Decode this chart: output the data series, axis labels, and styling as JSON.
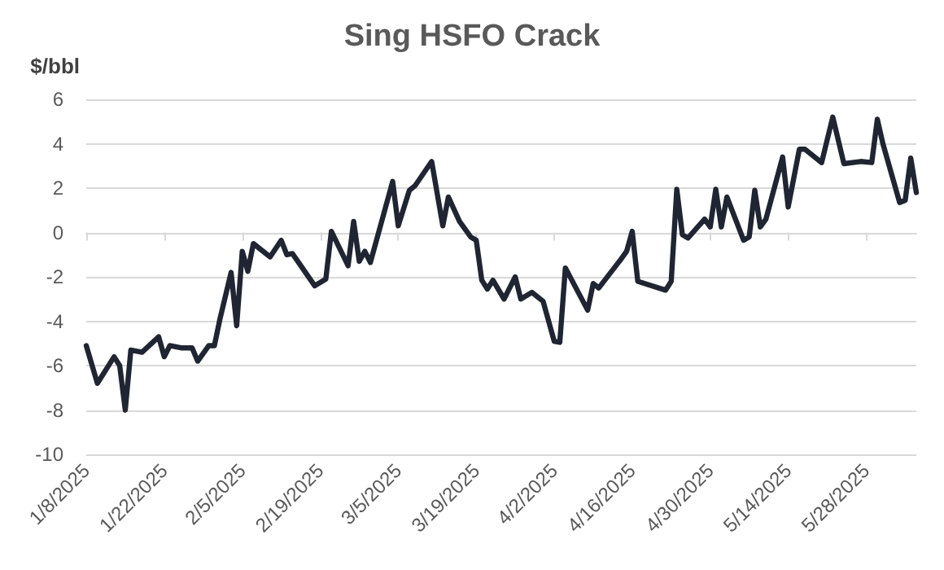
{
  "chart_data": {
    "type": "line",
    "title": "Sing HSFO Crack",
    "ylabel": "$/bbl",
    "x": [
      "2025-01-08",
      "2025-01-10",
      "2025-01-13",
      "2025-01-14",
      "2025-01-15",
      "2025-01-16",
      "2025-01-18",
      "2025-01-21",
      "2025-01-22",
      "2025-01-23",
      "2025-01-25",
      "2025-01-27",
      "2025-01-28",
      "2025-01-30",
      "2025-01-31",
      "2025-02-01",
      "2025-02-03",
      "2025-02-04",
      "2025-02-05",
      "2025-02-06",
      "2025-02-07",
      "2025-02-10",
      "2025-02-12",
      "2025-02-13",
      "2025-02-14",
      "2025-02-18",
      "2025-02-20",
      "2025-02-21",
      "2025-02-24",
      "2025-02-25",
      "2025-02-26",
      "2025-02-27",
      "2025-02-28",
      "2025-03-04",
      "2025-03-05",
      "2025-03-07",
      "2025-03-08",
      "2025-03-11",
      "2025-03-13",
      "2025-03-14",
      "2025-03-16",
      "2025-03-18",
      "2025-03-19",
      "2025-03-20",
      "2025-03-21",
      "2025-03-22",
      "2025-03-24",
      "2025-03-26",
      "2025-03-27",
      "2025-03-29",
      "2025-03-31",
      "2025-04-02",
      "2025-04-03",
      "2025-04-04",
      "2025-04-08",
      "2025-04-09",
      "2025-04-10",
      "2025-04-14",
      "2025-04-15",
      "2025-04-16",
      "2025-04-17",
      "2025-04-22",
      "2025-04-23",
      "2025-04-24",
      "2025-04-25",
      "2025-04-26",
      "2025-04-29",
      "2025-04-30",
      "2025-05-01",
      "2025-05-02",
      "2025-05-03",
      "2025-05-06",
      "2025-05-07",
      "2025-05-08",
      "2025-05-09",
      "2025-05-10",
      "2025-05-13",
      "2025-05-14",
      "2025-05-16",
      "2025-05-17",
      "2025-05-20",
      "2025-05-22",
      "2025-05-24",
      "2025-05-27",
      "2025-05-29",
      "2025-05-30",
      "2025-05-31",
      "2025-06-03",
      "2025-06-04",
      "2025-06-05",
      "2025-06-06"
    ],
    "series": [
      {
        "color": "#1f2532",
        "values": [
          -5.1,
          -6.8,
          -5.6,
          -6.0,
          -8.0,
          -5.3,
          -5.4,
          -4.7,
          -5.6,
          -5.1,
          -5.2,
          -5.2,
          -5.8,
          -5.1,
          -5.1,
          -3.9,
          -1.8,
          -4.2,
          -0.85,
          -1.75,
          -0.5,
          -1.1,
          -0.35,
          -1.0,
          -0.95,
          -2.4,
          -2.1,
          0.05,
          -1.5,
          0.5,
          -1.3,
          -0.85,
          -1.35,
          2.3,
          0.3,
          1.9,
          2.1,
          3.2,
          0.3,
          1.6,
          0.5,
          -0.2,
          -0.35,
          -2.15,
          -2.55,
          -2.15,
          -3.0,
          -2.0,
          -3.0,
          -2.7,
          -3.1,
          -4.9,
          -4.95,
          -1.6,
          -3.5,
          -2.3,
          -2.5,
          -1.2,
          -0.85,
          0.05,
          -2.2,
          -2.6,
          -2.2,
          1.95,
          -0.1,
          -0.25,
          0.6,
          0.25,
          1.95,
          0.25,
          1.6,
          -0.35,
          -0.2,
          1.9,
          0.25,
          0.6,
          3.4,
          1.15,
          3.75,
          3.75,
          3.15,
          5.2,
          3.1,
          3.2,
          3.15,
          5.1,
          4.0,
          1.35,
          1.45,
          3.35,
          1.8
        ]
      }
    ],
    "xlim": [
      "2025-01-08",
      "2025-06-06"
    ],
    "xticks": [
      {
        "value": "2025-01-08",
        "label": "1/8/2025"
      },
      {
        "value": "2025-01-22",
        "label": "1/22/2025"
      },
      {
        "value": "2025-02-05",
        "label": "2/5/2025"
      },
      {
        "value": "2025-02-19",
        "label": "2/19/2025"
      },
      {
        "value": "2025-03-05",
        "label": "3/5/2025"
      },
      {
        "value": "2025-03-19",
        "label": "3/19/2025"
      },
      {
        "value": "2025-04-02",
        "label": "4/2/2025"
      },
      {
        "value": "2025-04-16",
        "label": "4/16/2025"
      },
      {
        "value": "2025-04-30",
        "label": "4/30/2025"
      },
      {
        "value": "2025-05-14",
        "label": "5/14/2025"
      },
      {
        "value": "2025-05-28",
        "label": "5/28/2025"
      }
    ],
    "ylim": [
      -10,
      6
    ],
    "yticks": [
      -10,
      -8,
      -6,
      -4,
      -2,
      0,
      2,
      4,
      6
    ],
    "grid": "y",
    "marker": "none",
    "line_style": "solid"
  }
}
